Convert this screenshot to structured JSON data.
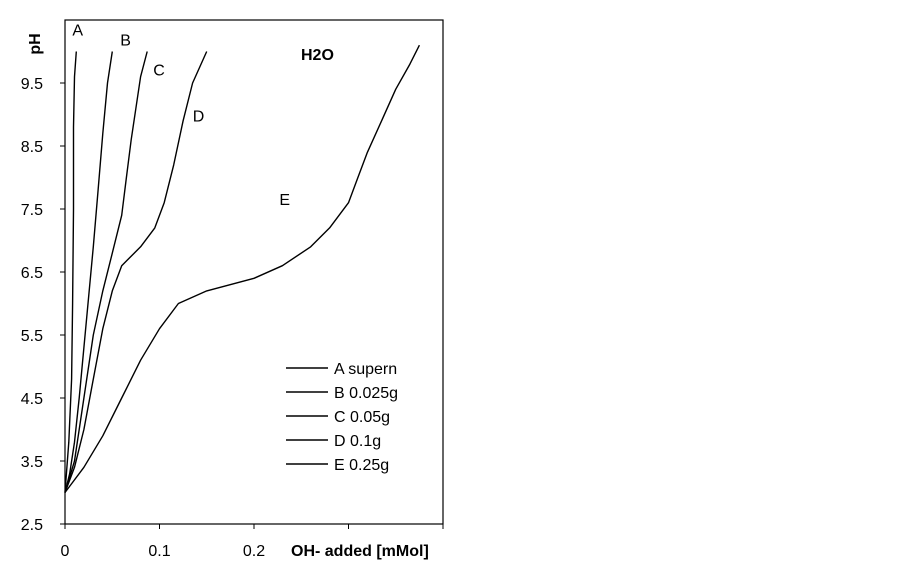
{
  "chart_data": {
    "type": "line",
    "title": "H2O",
    "xlabel": "OH- added [mMol]",
    "ylabel": "pH",
    "xlim": [
      0,
      0.4
    ],
    "ylim": [
      2.5,
      10.5
    ],
    "x_ticks": [
      "0",
      "0.1",
      "0.2"
    ],
    "y_ticks": [
      "2.5",
      "3.5",
      "4.5",
      "5.5",
      "6.5",
      "7.5",
      "8.5",
      "9.5"
    ],
    "grid": false,
    "legend_position": "bottom-right",
    "line_color": "#000000",
    "series": [
      {
        "name": "A supern",
        "label": "A",
        "points": [
          [
            0,
            3.0
          ],
          [
            0.004,
            3.8
          ],
          [
            0.007,
            4.8
          ],
          [
            0.008,
            6.0
          ],
          [
            0.009,
            7.5
          ],
          [
            0.009,
            8.8
          ],
          [
            0.01,
            9.6
          ],
          [
            0.012,
            10.0
          ]
        ]
      },
      {
        "name": "B 0.025g",
        "label": "B",
        "points": [
          [
            0,
            3.0
          ],
          [
            0.005,
            3.3
          ],
          [
            0.01,
            3.8
          ],
          [
            0.015,
            4.5
          ],
          [
            0.02,
            5.3
          ],
          [
            0.025,
            6.1
          ],
          [
            0.03,
            6.9
          ],
          [
            0.035,
            7.8
          ],
          [
            0.04,
            8.7
          ],
          [
            0.045,
            9.5
          ],
          [
            0.05,
            10.0
          ]
        ]
      },
      {
        "name": "C 0.05g",
        "label": "C",
        "points": [
          [
            0,
            3.0
          ],
          [
            0.01,
            3.5
          ],
          [
            0.02,
            4.5
          ],
          [
            0.03,
            5.5
          ],
          [
            0.04,
            6.2
          ],
          [
            0.05,
            6.8
          ],
          [
            0.06,
            7.4
          ],
          [
            0.065,
            8.0
          ],
          [
            0.07,
            8.6
          ],
          [
            0.075,
            9.1
          ],
          [
            0.08,
            9.6
          ],
          [
            0.087,
            10.0
          ]
        ]
      },
      {
        "name": "D 0.1g",
        "label": "D",
        "points": [
          [
            0,
            3.0
          ],
          [
            0.01,
            3.4
          ],
          [
            0.02,
            4.0
          ],
          [
            0.03,
            4.8
          ],
          [
            0.04,
            5.6
          ],
          [
            0.05,
            6.2
          ],
          [
            0.06,
            6.6
          ],
          [
            0.08,
            6.9
          ],
          [
            0.095,
            7.2
          ],
          [
            0.105,
            7.6
          ],
          [
            0.115,
            8.2
          ],
          [
            0.125,
            8.9
          ],
          [
            0.135,
            9.5
          ],
          [
            0.15,
            10.0
          ]
        ]
      },
      {
        "name": "E 0.25g",
        "label": "E",
        "points": [
          [
            0,
            3.0
          ],
          [
            0.02,
            3.4
          ],
          [
            0.04,
            3.9
          ],
          [
            0.06,
            4.5
          ],
          [
            0.08,
            5.1
          ],
          [
            0.1,
            5.6
          ],
          [
            0.12,
            6.0
          ],
          [
            0.15,
            6.2
          ],
          [
            0.2,
            6.4
          ],
          [
            0.23,
            6.6
          ],
          [
            0.26,
            6.9
          ],
          [
            0.28,
            7.2
          ],
          [
            0.3,
            7.6
          ],
          [
            0.31,
            8.0
          ],
          [
            0.32,
            8.4
          ],
          [
            0.335,
            8.9
          ],
          [
            0.35,
            9.4
          ],
          [
            0.365,
            9.8
          ],
          [
            0.375,
            10.1
          ]
        ]
      }
    ]
  }
}
